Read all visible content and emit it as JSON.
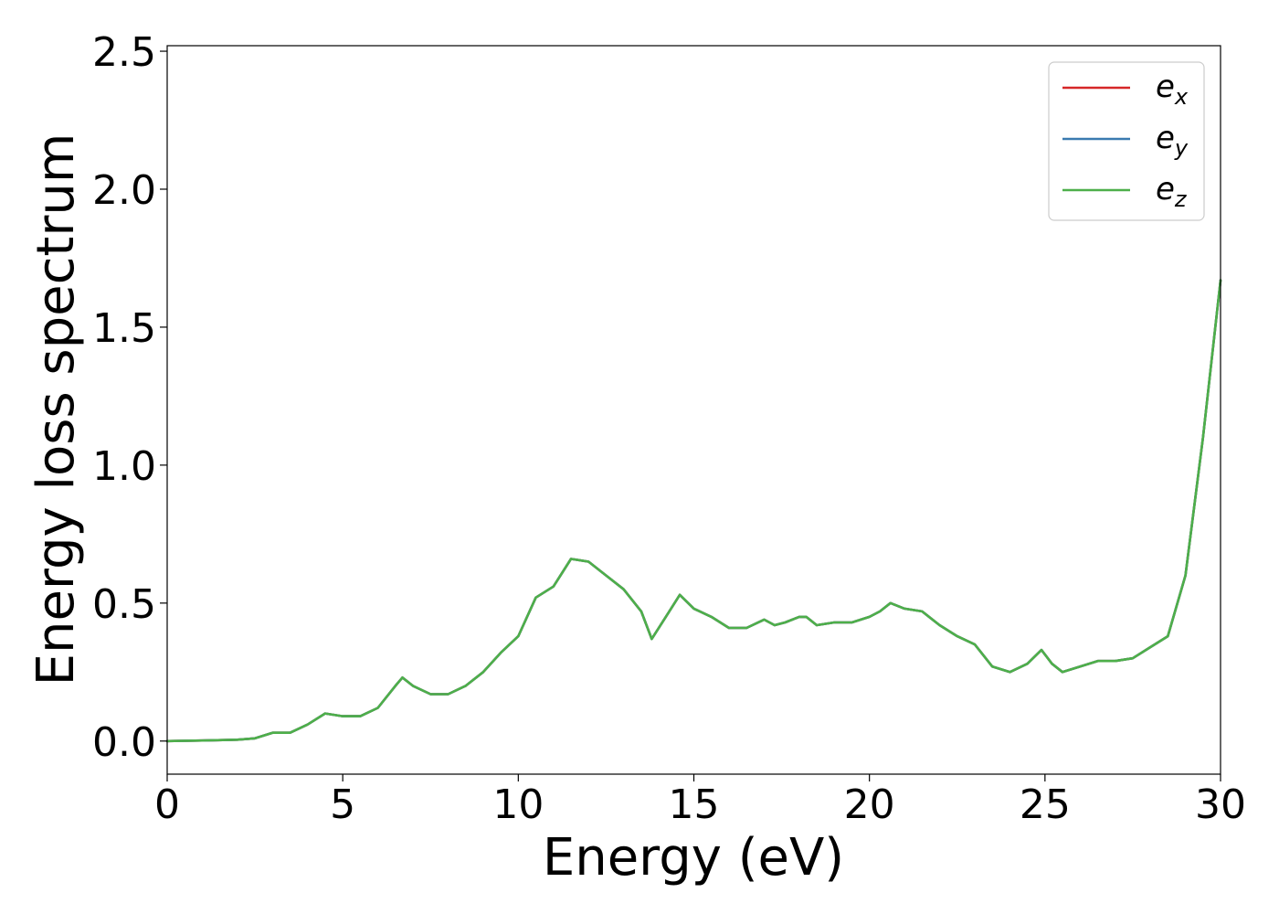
{
  "chart_data": {
    "type": "line",
    "xlabel": "Energy (eV)",
    "ylabel": "Energy loss spectrum",
    "xlim": [
      0,
      30
    ],
    "ylim": [
      -0.12,
      2.52
    ],
    "xticks": [
      0,
      5,
      10,
      15,
      20,
      25,
      30
    ],
    "xtick_labels": [
      "0",
      "5",
      "10",
      "15",
      "20",
      "25",
      "30"
    ],
    "yticks": [
      0.0,
      0.5,
      1.0,
      1.5,
      2.0,
      2.5
    ],
    "ytick_labels": [
      "0.0",
      "0.5",
      "1.0",
      "1.5",
      "2.0",
      "2.5"
    ],
    "grid": false,
    "legend_position": "top-right",
    "legend": [
      {
        "main": "e",
        "sub": "x",
        "color": "#d62728"
      },
      {
        "main": "e",
        "sub": "y",
        "color": "#3a7ab0"
      },
      {
        "main": "e",
        "sub": "z",
        "color": "#4daf4a"
      }
    ],
    "x": [
      0,
      1,
      2,
      2.5,
      3,
      3.5,
      4,
      4.5,
      5,
      5.5,
      6,
      6.5,
      6.7,
      7,
      7.5,
      8,
      8.5,
      9,
      9.5,
      10,
      10.5,
      11,
      11.5,
      12,
      12.5,
      13,
      13.5,
      13.8,
      14.2,
      14.6,
      15,
      15.5,
      16,
      16.5,
      17,
      17.3,
      17.6,
      18,
      18.2,
      18.5,
      19,
      19.5,
      20,
      20.3,
      20.6,
      21,
      21.5,
      22,
      22.5,
      23,
      23.5,
      24,
      24.5,
      24.9,
      25.2,
      25.5,
      26,
      26.5,
      27,
      27.5,
      28,
      28.5,
      29,
      29.5,
      30
    ],
    "series": [
      {
        "color": "#d62728",
        "values": [
          0.0,
          0.002,
          0.005,
          0.01,
          0.03,
          0.03,
          0.06,
          0.1,
          0.09,
          0.09,
          0.12,
          0.2,
          0.23,
          0.2,
          0.17,
          0.17,
          0.2,
          0.25,
          0.32,
          0.38,
          0.52,
          0.56,
          0.66,
          0.65,
          0.6,
          0.55,
          0.47,
          0.37,
          0.45,
          0.53,
          0.48,
          0.45,
          0.41,
          0.41,
          0.44,
          0.42,
          0.43,
          0.45,
          0.45,
          0.42,
          0.43,
          0.43,
          0.45,
          0.47,
          0.5,
          0.48,
          0.47,
          0.42,
          0.38,
          0.35,
          0.27,
          0.25,
          0.28,
          0.33,
          0.28,
          0.25,
          0.27,
          0.29,
          0.29,
          0.3,
          0.34,
          0.38,
          0.6,
          1.1,
          1.67
        ]
      },
      {
        "color": "#3a7ab0",
        "values": [
          0.0,
          0.002,
          0.005,
          0.01,
          0.03,
          0.03,
          0.06,
          0.1,
          0.09,
          0.09,
          0.12,
          0.2,
          0.23,
          0.2,
          0.17,
          0.17,
          0.2,
          0.25,
          0.32,
          0.38,
          0.52,
          0.56,
          0.66,
          0.65,
          0.6,
          0.55,
          0.47,
          0.37,
          0.45,
          0.53,
          0.48,
          0.45,
          0.41,
          0.41,
          0.44,
          0.42,
          0.43,
          0.45,
          0.45,
          0.42,
          0.43,
          0.43,
          0.45,
          0.47,
          0.5,
          0.48,
          0.47,
          0.42,
          0.38,
          0.35,
          0.27,
          0.25,
          0.28,
          0.33,
          0.28,
          0.25,
          0.27,
          0.29,
          0.29,
          0.3,
          0.34,
          0.38,
          0.6,
          1.1,
          1.67
        ]
      },
      {
        "color": "#4daf4a",
        "values": [
          0.0,
          0.002,
          0.005,
          0.01,
          0.03,
          0.03,
          0.06,
          0.1,
          0.09,
          0.09,
          0.12,
          0.2,
          0.23,
          0.2,
          0.17,
          0.17,
          0.2,
          0.25,
          0.32,
          0.38,
          0.52,
          0.56,
          0.66,
          0.65,
          0.6,
          0.55,
          0.47,
          0.37,
          0.45,
          0.53,
          0.48,
          0.45,
          0.41,
          0.41,
          0.44,
          0.42,
          0.43,
          0.45,
          0.45,
          0.42,
          0.43,
          0.43,
          0.45,
          0.47,
          0.5,
          0.48,
          0.47,
          0.42,
          0.38,
          0.35,
          0.27,
          0.25,
          0.28,
          0.33,
          0.28,
          0.25,
          0.27,
          0.29,
          0.29,
          0.3,
          0.34,
          0.38,
          0.6,
          1.1,
          1.67
        ]
      }
    ]
  }
}
